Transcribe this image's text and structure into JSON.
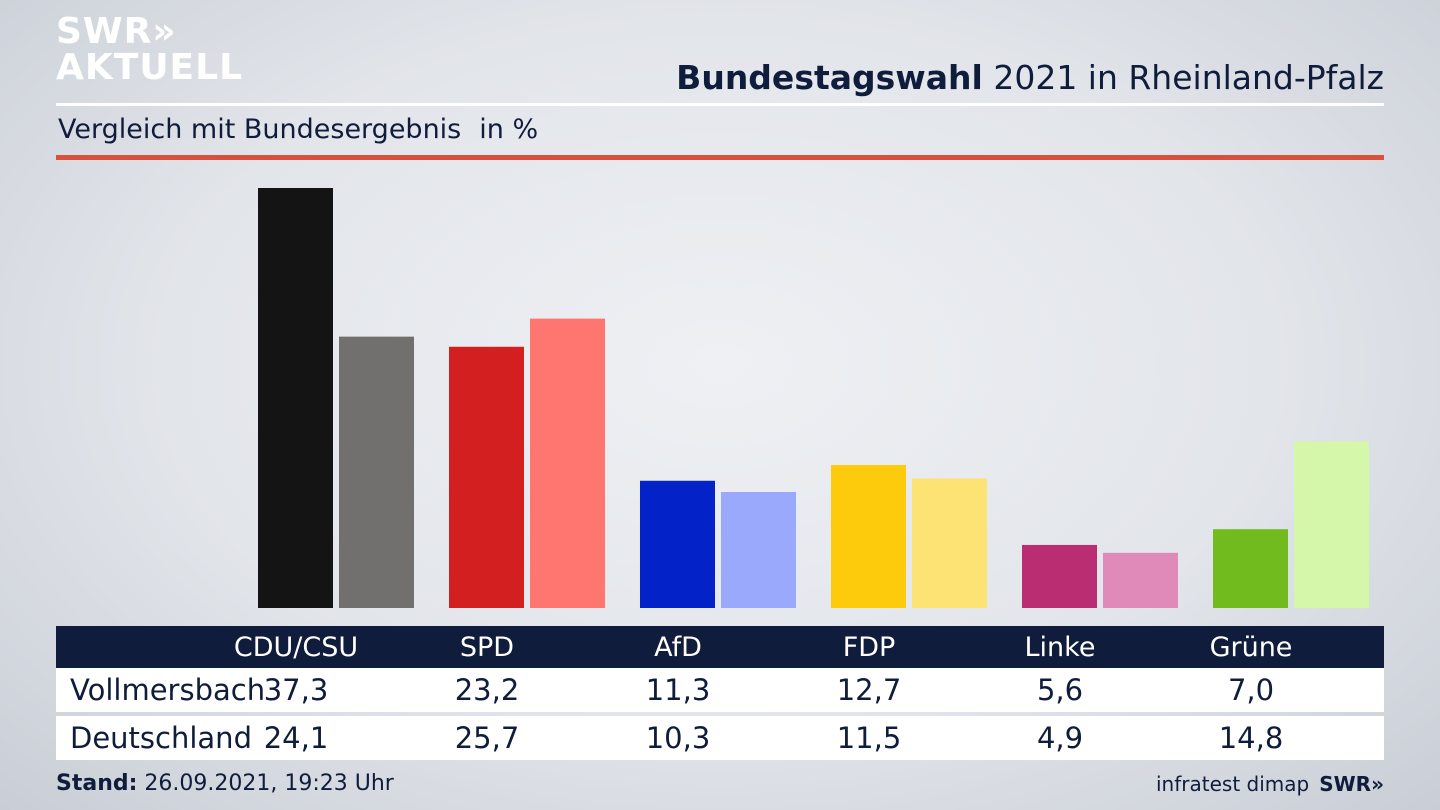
{
  "logo": {
    "line1": "SWR»",
    "line2": "AKTUELL"
  },
  "header": {
    "title_bold": "Bundestagswahl",
    "title_rest": "2021 in Rheinland-Pfalz",
    "subtitle": "Vergleich mit Bundesergebnis",
    "unit": "in %"
  },
  "colors": {
    "CDU/CSU": [
      "#141414",
      "#72706e"
    ],
    "SPD": [
      "#d41f20",
      "#ff7670"
    ],
    "AfD": [
      "#0323c8",
      "#9ba9fc"
    ],
    "FDP": [
      "#fecb0c",
      "#fde374"
    ],
    "Linke": [
      "#bb2d72",
      "#e08ab9"
    ],
    "Grüne": [
      "#72bb1f",
      "#d4f7a9"
    ]
  },
  "chart_data": {
    "type": "bar",
    "categories": [
      "CDU/CSU",
      "SPD",
      "AfD",
      "FDP",
      "Linke",
      "Grüne"
    ],
    "series": [
      {
        "name": "Vollmersbach",
        "values": [
          37.3,
          23.2,
          11.3,
          12.7,
          5.6,
          7.0
        ]
      },
      {
        "name": "Deutschland",
        "values": [
          24.1,
          25.7,
          10.3,
          11.5,
          4.9,
          14.8
        ]
      }
    ],
    "title": "Bundestagswahl 2021 in Rheinland-Pfalz",
    "ylabel": "in %",
    "grid": false
  },
  "table": {
    "headers": [
      "CDU/CSU",
      "SPD",
      "AfD",
      "FDP",
      "Linke",
      "Grüne"
    ],
    "rows": [
      {
        "label": "Vollmersbach",
        "values": [
          "37,3",
          "23,2",
          "11,3",
          "12,7",
          "5,6",
          "7,0"
        ]
      },
      {
        "label": "Deutschland",
        "values": [
          "24,1",
          "25,7",
          "10,3",
          "11,5",
          "4,9",
          "14,8"
        ]
      }
    ]
  },
  "footer": {
    "stand_label": "Stand:",
    "stand_value": "26.09.2021, 19:23 Uhr",
    "source": "infratest dimap",
    "brand": "SWR»"
  }
}
